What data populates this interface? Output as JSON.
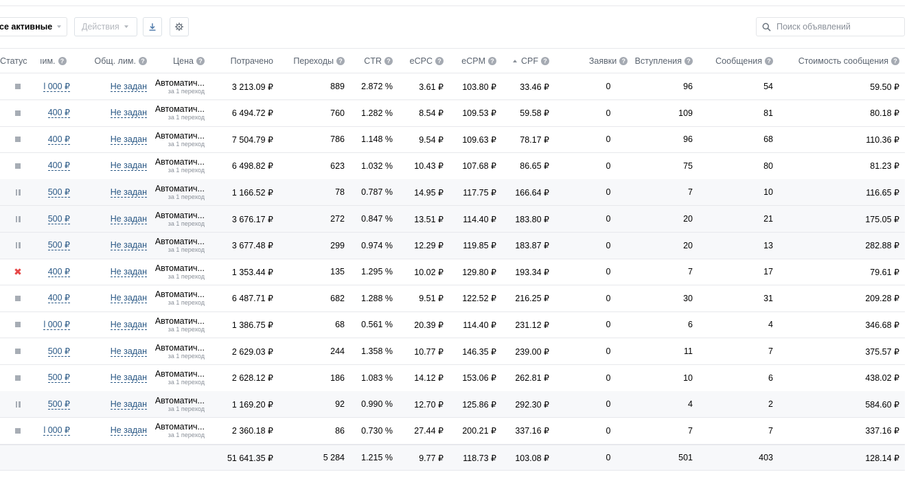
{
  "toolbar": {
    "filter_label": "се активные",
    "actions_label": "Действия",
    "download_icon": "download-icon",
    "settings_icon": "gear-icon",
    "search_placeholder": "Поиск объявлений"
  },
  "columns": {
    "status": "Статус",
    "limit": "ıим.",
    "general_limit": "Общ. лим.",
    "price": "Цена",
    "spent": "Потрачено",
    "clicks": "Переходы",
    "ctr": "CTR",
    "ecpc": "eCPC",
    "ecpm": "eCPM",
    "cpf": "CPF",
    "requests": "Заявки",
    "joins": "Вступления",
    "messages": "Сообщения",
    "message_cost": "Стоимость сообщения"
  },
  "help_mark": "?",
  "price_main": "Автоматич...",
  "price_sub": "за 1 переход",
  "general_limit_value": "Не задан",
  "rows": [
    {
      "status": "active",
      "limit": "l 000 ₽",
      "spent": "3 213.09 ₽",
      "clicks": "889",
      "ctr": "2.872 %",
      "ecpc": "3.61 ₽",
      "ecpm": "103.80 ₽",
      "cpf": "33.46 ₽",
      "requests": "0",
      "joins": "96",
      "messages": "54",
      "cost": "59.50 ₽"
    },
    {
      "status": "active",
      "limit": "400 ₽",
      "spent": "6 494.72 ₽",
      "clicks": "760",
      "ctr": "1.282 %",
      "ecpc": "8.54 ₽",
      "ecpm": "109.53 ₽",
      "cpf": "59.58 ₽",
      "requests": "0",
      "joins": "109",
      "messages": "81",
      "cost": "80.18 ₽"
    },
    {
      "status": "active",
      "limit": "400 ₽",
      "spent": "7 504.79 ₽",
      "clicks": "786",
      "ctr": "1.148 %",
      "ecpc": "9.54 ₽",
      "ecpm": "109.63 ₽",
      "cpf": "78.17 ₽",
      "requests": "0",
      "joins": "96",
      "messages": "68",
      "cost": "110.36 ₽"
    },
    {
      "status": "active",
      "limit": "400 ₽",
      "spent": "6 498.82 ₽",
      "clicks": "623",
      "ctr": "1.032 %",
      "ecpc": "10.43 ₽",
      "ecpm": "107.68 ₽",
      "cpf": "86.65 ₽",
      "requests": "0",
      "joins": "75",
      "messages": "80",
      "cost": "81.23 ₽"
    },
    {
      "status": "paused",
      "limit": "500 ₽",
      "spent": "1 166.52 ₽",
      "clicks": "78",
      "ctr": "0.787 %",
      "ecpc": "14.95 ₽",
      "ecpm": "117.75 ₽",
      "cpf": "166.64 ₽",
      "requests": "0",
      "joins": "7",
      "messages": "10",
      "cost": "116.65 ₽"
    },
    {
      "status": "paused",
      "limit": "500 ₽",
      "spent": "3 676.17 ₽",
      "clicks": "272",
      "ctr": "0.847 %",
      "ecpc": "13.51 ₽",
      "ecpm": "114.40 ₽",
      "cpf": "183.80 ₽",
      "requests": "0",
      "joins": "20",
      "messages": "21",
      "cost": "175.05 ₽"
    },
    {
      "status": "paused",
      "limit": "500 ₽",
      "spent": "3 677.48 ₽",
      "clicks": "299",
      "ctr": "0.974 %",
      "ecpc": "12.29 ₽",
      "ecpm": "119.85 ₽",
      "cpf": "183.87 ₽",
      "requests": "0",
      "joins": "20",
      "messages": "13",
      "cost": "282.88 ₽"
    },
    {
      "status": "rejected",
      "limit": "400 ₽",
      "spent": "1 353.44 ₽",
      "clicks": "135",
      "ctr": "1.295 %",
      "ecpc": "10.02 ₽",
      "ecpm": "129.80 ₽",
      "cpf": "193.34 ₽",
      "requests": "0",
      "joins": "7",
      "messages": "17",
      "cost": "79.61 ₽"
    },
    {
      "status": "active",
      "limit": "400 ₽",
      "spent": "6 487.71 ₽",
      "clicks": "682",
      "ctr": "1.288 %",
      "ecpc": "9.51 ₽",
      "ecpm": "122.52 ₽",
      "cpf": "216.25 ₽",
      "requests": "0",
      "joins": "30",
      "messages": "31",
      "cost": "209.28 ₽"
    },
    {
      "status": "active",
      "limit": "l 000 ₽",
      "spent": "1 386.75 ₽",
      "clicks": "68",
      "ctr": "0.561 %",
      "ecpc": "20.39 ₽",
      "ecpm": "114.40 ₽",
      "cpf": "231.12 ₽",
      "requests": "0",
      "joins": "6",
      "messages": "4",
      "cost": "346.68 ₽"
    },
    {
      "status": "active",
      "limit": "500 ₽",
      "spent": "2 629.03 ₽",
      "clicks": "244",
      "ctr": "1.358 %",
      "ecpc": "10.77 ₽",
      "ecpm": "146.35 ₽",
      "cpf": "239.00 ₽",
      "requests": "0",
      "joins": "11",
      "messages": "7",
      "cost": "375.57 ₽"
    },
    {
      "status": "active",
      "limit": "500 ₽",
      "spent": "2 628.12 ₽",
      "clicks": "186",
      "ctr": "1.083 %",
      "ecpc": "14.12 ₽",
      "ecpm": "153.06 ₽",
      "cpf": "262.81 ₽",
      "requests": "0",
      "joins": "10",
      "messages": "6",
      "cost": "438.02 ₽"
    },
    {
      "status": "paused",
      "limit": "500 ₽",
      "spent": "1 169.20 ₽",
      "clicks": "92",
      "ctr": "0.990 %",
      "ecpc": "12.70 ₽",
      "ecpm": "125.86 ₽",
      "cpf": "292.30 ₽",
      "requests": "0",
      "joins": "4",
      "messages": "2",
      "cost": "584.60 ₽"
    },
    {
      "status": "active",
      "limit": "l 000 ₽",
      "spent": "2 360.18 ₽",
      "clicks": "86",
      "ctr": "0.730 %",
      "ecpc": "27.44 ₽",
      "ecpm": "200.21 ₽",
      "cpf": "337.16 ₽",
      "requests": "0",
      "joins": "7",
      "messages": "7",
      "cost": "337.16 ₽"
    }
  ],
  "totals": {
    "spent": "51 641.35 ₽",
    "clicks": "5 284",
    "ctr": "1.215 %",
    "ecpc": "9.77 ₽",
    "ecpm": "118.73 ₽",
    "cpf": "103.08 ₽",
    "requests": "0",
    "joins": "501",
    "messages": "403",
    "cost": "128.14 ₽"
  },
  "colors": {
    "link": "#2a5885",
    "reject": "#e64646",
    "status_gray": "#a7adb5"
  }
}
